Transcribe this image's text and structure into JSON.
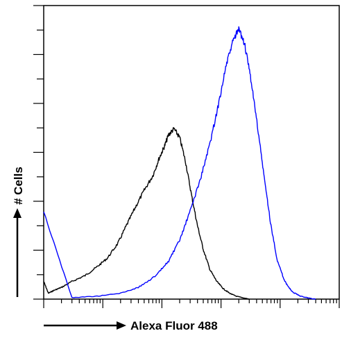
{
  "chart_data": {
    "type": "area",
    "title": "",
    "xlabel": "Alexa Fluor 488",
    "ylabel": "# Cells",
    "x_scale": "log",
    "xlim": [
      1,
      100000
    ],
    "ylim": [
      0,
      1
    ],
    "grid": false,
    "series": [
      {
        "color": "#000000",
        "x": [
          1,
          1.2,
          1.5,
          2,
          3,
          5,
          8,
          12,
          18,
          25,
          35,
          50,
          70,
          90,
          110,
          130,
          160,
          200,
          250,
          320,
          400,
          500,
          650,
          850,
          1100,
          1400,
          1800,
          2300,
          3000
        ],
        "y": [
          0.06,
          0.02,
          0.03,
          0.04,
          0.06,
          0.08,
          0.11,
          0.14,
          0.19,
          0.25,
          0.31,
          0.37,
          0.42,
          0.48,
          0.52,
          0.56,
          0.58,
          0.55,
          0.47,
          0.35,
          0.25,
          0.17,
          0.1,
          0.06,
          0.035,
          0.02,
          0.01,
          0.005,
          0
        ]
      },
      {
        "color": "#0000ff",
        "x": [
          1,
          3,
          8,
          20,
          40,
          80,
          130,
          200,
          300,
          450,
          650,
          900,
          1200,
          1600,
          2000,
          2500,
          3200,
          4200,
          5500,
          7000,
          9000,
          12000,
          16000,
          22000,
          30000,
          40000
        ],
        "y": [
          0.3,
          0.005,
          0.01,
          0.02,
          0.04,
          0.08,
          0.13,
          0.2,
          0.3,
          0.41,
          0.53,
          0.66,
          0.79,
          0.88,
          0.92,
          0.87,
          0.75,
          0.58,
          0.4,
          0.25,
          0.13,
          0.06,
          0.025,
          0.01,
          0.004,
          0
        ]
      }
    ]
  }
}
